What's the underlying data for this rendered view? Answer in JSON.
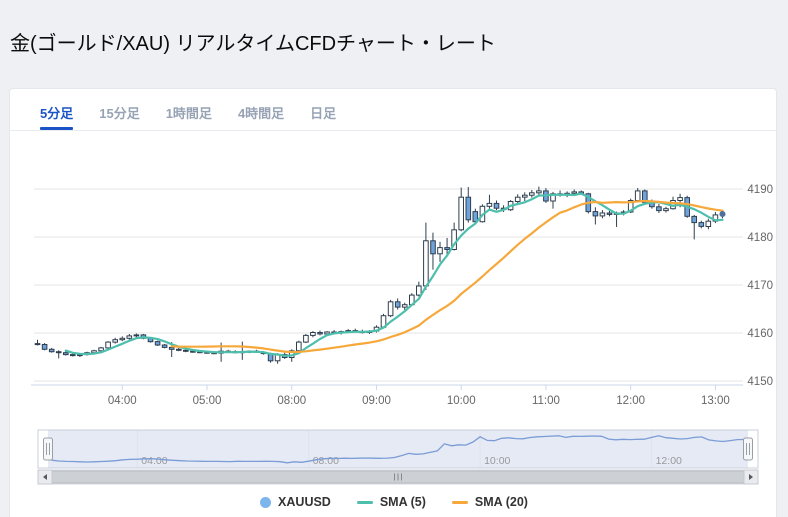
{
  "page": {
    "title": "金(ゴールド/XAU) リアルタイムCFDチャート・レート"
  },
  "tabs": [
    {
      "key": "5min",
      "label": "5分足",
      "active": true
    },
    {
      "key": "15min",
      "label": "15分足",
      "active": false
    },
    {
      "key": "1hour",
      "label": "1時間足",
      "active": false
    },
    {
      "key": "4hour",
      "label": "4時間足",
      "active": false
    },
    {
      "key": "daily",
      "label": "日足",
      "active": false
    }
  ],
  "legend": {
    "items": [
      {
        "key": "xauusd",
        "label": "XAUUSD",
        "swatch": "circle",
        "color": "#7cb5ec"
      },
      {
        "key": "sma5",
        "label": "SMA (5)",
        "swatch": "line",
        "color": "#4dbfac"
      },
      {
        "key": "sma20",
        "label": "SMA (20)",
        "swatch": "line",
        "color": "#f6a83b"
      }
    ]
  },
  "colors": {
    "up_fill": "#ffffff",
    "down_fill": "#6ea3dc",
    "candle_line": "#2f3f4f",
    "sma5": "#4dbfac",
    "sma20": "#f6a83b",
    "grid": "#e6e6e6",
    "axis_line": "#ccd6eb",
    "axis_label": "#666666",
    "nav_line": "#7b9cd6",
    "nav_mask": "rgba(110,140,200,0.18)",
    "nav_border": "#c8d0dd",
    "nav_label": "#999999",
    "scroll_track": "#f0f1f3",
    "scroll_thumb": "#cdd0d4",
    "scroll_button": "#e9ebee",
    "scroll_arrow": "#55585e",
    "handle_fill": "#f6f7f9",
    "handle_stroke": "#999fa8",
    "accent_tab": "#1b53c6",
    "last_dot": "#4f6f9f"
  },
  "chart_data": {
    "type": "candlestick",
    "symbol": "XAUUSD",
    "interval": "5分足",
    "title": "金(ゴールド/XAU) リアルタイムCFDチャート・レート",
    "ylabel": "",
    "xlabel": "",
    "ylim": [
      4148,
      4194
    ],
    "y_ticks": [
      4150,
      4160,
      4170,
      4180,
      4190
    ],
    "x_ticks": [
      "04:00",
      "05:00",
      "08:00",
      "09:00",
      "10:00",
      "11:00",
      "12:00",
      "13:00"
    ],
    "navigator_ticks": [
      "04:00",
      "08:00",
      "10:00",
      "12:00"
    ],
    "grid": "horizontal-only",
    "legend_position": "bottom-center",
    "overlays": [
      {
        "name": "SMA (5)",
        "type": "sma",
        "period": 5
      },
      {
        "name": "SMA (20)",
        "type": "sma",
        "period": 20
      }
    ],
    "session_break": {
      "after": "05:10",
      "resume": "07:15"
    },
    "last_price_marker": true,
    "columns": [
      "time",
      "open",
      "high",
      "low",
      "close"
    ],
    "candles": [
      [
        "03:00",
        4157.8,
        4158.6,
        4157.4,
        4157.6
      ],
      [
        "03:05",
        4157.6,
        4157.9,
        4156.4,
        4156.6
      ],
      [
        "03:10",
        4156.6,
        4156.9,
        4155.9,
        4156.1
      ],
      [
        "03:15",
        4156.1,
        4156.4,
        4154.7,
        4155.9
      ],
      [
        "03:20",
        4155.9,
        4156.2,
        4155.3,
        4155.5
      ],
      [
        "03:25",
        4155.5,
        4155.8,
        4155.1,
        4155.3
      ],
      [
        "03:30",
        4155.3,
        4155.7,
        4155.0,
        4155.5
      ],
      [
        "03:35",
        4155.5,
        4156.1,
        4155.3,
        4155.9
      ],
      [
        "03:40",
        4155.9,
        4156.5,
        4155.7,
        4156.3
      ],
      [
        "03:45",
        4156.3,
        4157.1,
        4156.1,
        4156.9
      ],
      [
        "03:50",
        4156.9,
        4158.3,
        4156.7,
        4158.1
      ],
      [
        "03:55",
        4158.1,
        4159.0,
        4157.8,
        4158.6
      ],
      [
        "04:00",
        4158.6,
        4159.3,
        4158.3,
        4158.9
      ],
      [
        "04:05",
        4158.9,
        4159.8,
        4158.6,
        4159.4
      ],
      [
        "04:10",
        4159.4,
        4159.9,
        4158.9,
        4159.6
      ],
      [
        "04:15",
        4159.6,
        4159.8,
        4158.7,
        4158.9
      ],
      [
        "04:20",
        4158.9,
        4159.1,
        4158.0,
        4158.2
      ],
      [
        "04:25",
        4158.2,
        4158.4,
        4157.3,
        4157.5
      ],
      [
        "04:30",
        4157.5,
        4157.7,
        4156.8,
        4157.0
      ],
      [
        "04:35",
        4157.0,
        4158.1,
        4155.0,
        4156.6
      ],
      [
        "04:40",
        4156.6,
        4156.9,
        4156.2,
        4156.4
      ],
      [
        "04:45",
        4156.4,
        4156.7,
        4156.0,
        4156.2
      ],
      [
        "04:50",
        4156.2,
        4156.5,
        4155.9,
        4156.1
      ],
      [
        "04:55",
        4156.1,
        4156.4,
        4155.8,
        4156.0
      ],
      [
        "05:00",
        4156.0,
        4156.3,
        4155.7,
        4155.9
      ],
      [
        "05:05",
        4155.9,
        4156.2,
        4155.6,
        4155.8
      ],
      [
        "05:10",
        4155.8,
        4158.0,
        4154.0,
        4156.2
      ],
      [
        "07:15",
        4156.2,
        4156.5,
        4155.9,
        4156.1
      ],
      [
        "07:20",
        4156.1,
        4156.4,
        4155.8,
        4156.0
      ],
      [
        "07:25",
        4156.0,
        4158.2,
        4154.4,
        4156.1
      ],
      [
        "07:30",
        4156.1,
        4156.4,
        4155.8,
        4156.2
      ],
      [
        "07:35",
        4156.2,
        4156.5,
        4155.9,
        4156.0
      ],
      [
        "07:40",
        4156.0,
        4156.2,
        4155.5,
        4155.7
      ],
      [
        "07:45",
        4155.7,
        4155.9,
        4153.8,
        4154.2
      ],
      [
        "07:50",
        4154.2,
        4155.8,
        4153.6,
        4155.5
      ],
      [
        "07:55",
        4155.5,
        4155.9,
        4154.6,
        4154.9
      ],
      [
        "08:00",
        4154.9,
        4156.6,
        4154.0,
        4156.3
      ],
      [
        "08:05",
        4156.3,
        4158.4,
        4156.1,
        4158.1
      ],
      [
        "08:10",
        4158.1,
        4159.8,
        4157.9,
        4159.5
      ],
      [
        "08:15",
        4159.5,
        4160.4,
        4159.1,
        4160.1
      ],
      [
        "08:20",
        4160.1,
        4160.5,
        4159.5,
        4159.8
      ],
      [
        "08:25",
        4159.8,
        4160.4,
        4159.5,
        4160.2
      ],
      [
        "08:30",
        4160.2,
        4160.6,
        4159.8,
        4160.0
      ],
      [
        "08:35",
        4160.0,
        4160.5,
        4159.7,
        4160.3
      ],
      [
        "08:40",
        4160.3,
        4160.8,
        4160.0,
        4160.5
      ],
      [
        "08:45",
        4160.5,
        4160.9,
        4160.1,
        4160.3
      ],
      [
        "08:50",
        4160.3,
        4160.7,
        4159.9,
        4160.1
      ],
      [
        "08:55",
        4160.1,
        4160.6,
        4159.8,
        4160.4
      ],
      [
        "09:00",
        4160.4,
        4161.6,
        4160.1,
        4161.2
      ],
      [
        "09:05",
        4161.2,
        4164.0,
        4161.0,
        4163.6
      ],
      [
        "09:10",
        4163.6,
        4166.9,
        4163.3,
        4166.5
      ],
      [
        "09:15",
        4166.5,
        4167.2,
        4164.9,
        4165.4
      ],
      [
        "09:20",
        4165.4,
        4166.3,
        4164.8,
        4165.9
      ],
      [
        "09:25",
        4165.9,
        4168.3,
        4165.7,
        4167.9
      ],
      [
        "09:30",
        4167.9,
        4170.7,
        4167.6,
        4169.8
      ],
      [
        "09:35",
        4169.8,
        4183.0,
        4169.0,
        4179.2
      ],
      [
        "09:40",
        4179.2,
        4180.9,
        4173.2,
        4176.5
      ],
      [
        "09:45",
        4176.5,
        4179.0,
        4174.8,
        4177.8
      ],
      [
        "09:50",
        4177.8,
        4179.8,
        4176.0,
        4177.4
      ],
      [
        "09:55",
        4177.4,
        4183.0,
        4177.2,
        4181.5
      ],
      [
        "10:00",
        4181.5,
        4190.3,
        4181.2,
        4188.3
      ],
      [
        "10:05",
        4188.3,
        4190.4,
        4183.0,
        4183.6
      ],
      [
        "10:10",
        4185.3,
        4185.9,
        4182.6,
        4183.2
      ],
      [
        "10:15",
        4183.2,
        4186.8,
        4183.0,
        4186.4
      ],
      [
        "10:20",
        4186.4,
        4188.8,
        4185.9,
        4187.0
      ],
      [
        "10:25",
        4187.0,
        4187.6,
        4185.6,
        4186.0
      ],
      [
        "10:30",
        4186.0,
        4186.6,
        4185.2,
        4185.7
      ],
      [
        "10:35",
        4185.7,
        4187.7,
        4185.4,
        4187.4
      ],
      [
        "10:40",
        4187.4,
        4188.9,
        4186.8,
        4188.3
      ],
      [
        "10:45",
        4188.3,
        4189.3,
        4187.5,
        4188.7
      ],
      [
        "10:50",
        4188.7,
        4189.8,
        4188.2,
        4189.2
      ],
      [
        "10:55",
        4189.2,
        4190.5,
        4188.7,
        4189.6
      ],
      [
        "11:00",
        4189.6,
        4190.2,
        4187.1,
        4187.5
      ],
      [
        "11:05",
        4187.5,
        4189.4,
        4185.9,
        4189.0
      ],
      [
        "11:10",
        4189.0,
        4189.7,
        4188.4,
        4188.8
      ],
      [
        "11:15",
        4188.8,
        4189.5,
        4188.3,
        4189.1
      ],
      [
        "11:20",
        4189.1,
        4189.9,
        4188.6,
        4189.4
      ],
      [
        "11:25",
        4189.4,
        4189.7,
        4188.8,
        4189.0
      ],
      [
        "11:30",
        4189.0,
        4189.2,
        4184.9,
        4185.3
      ],
      [
        "11:35",
        4185.3,
        4186.2,
        4182.6,
        4184.4
      ],
      [
        "11:40",
        4184.4,
        4185.6,
        4183.9,
        4185.0
      ],
      [
        "11:45",
        4185.0,
        4185.5,
        4184.3,
        4184.7
      ],
      [
        "11:50",
        4184.7,
        4185.3,
        4182.1,
        4185.0
      ],
      [
        "11:55",
        4185.0,
        4185.6,
        4184.5,
        4185.2
      ],
      [
        "12:00",
        4185.2,
        4188.0,
        4185.0,
        4187.6
      ],
      [
        "12:05",
        4187.6,
        4190.2,
        4187.3,
        4189.6
      ],
      [
        "12:10",
        4189.6,
        4189.9,
        4186.8,
        4187.2
      ],
      [
        "12:15",
        4187.2,
        4187.8,
        4185.9,
        4186.3
      ],
      [
        "12:20",
        4186.3,
        4186.9,
        4185.0,
        4185.5
      ],
      [
        "12:25",
        4185.5,
        4186.3,
        4185.1,
        4185.9
      ],
      [
        "12:30",
        4185.9,
        4188.4,
        4185.7,
        4187.6
      ],
      [
        "12:35",
        4187.6,
        4189.0,
        4186.2,
        4188.2
      ],
      [
        "12:40",
        4188.2,
        4188.6,
        4184.0,
        4184.3
      ],
      [
        "12:45",
        4184.3,
        4184.6,
        4179.5,
        4183.0
      ],
      [
        "12:50",
        4183.0,
        4183.4,
        4181.8,
        4182.2
      ],
      [
        "12:55",
        4182.2,
        4183.8,
        4181.6,
        4183.3
      ],
      [
        "13:00",
        4183.3,
        4185.2,
        4182.9,
        4184.6
      ],
      [
        "13:05",
        4184.6,
        4185.3,
        4183.9,
        4184.8
      ]
    ]
  }
}
